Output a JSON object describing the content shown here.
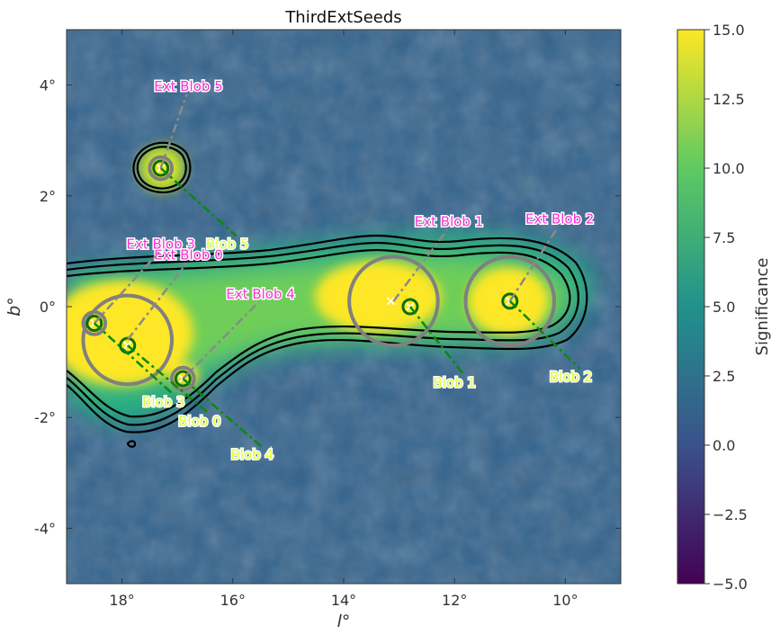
{
  "chart_data": {
    "type": "heatmap",
    "title": "ThirdExtSeeds",
    "xlabel": "l°",
    "ylabel": "b°",
    "xlim": [
      19,
      9
    ],
    "ylim": [
      -5,
      5
    ],
    "xticks": [
      "18°",
      "16°",
      "14°",
      "12°",
      "10°"
    ],
    "xtick_values": [
      18,
      16,
      14,
      12,
      10
    ],
    "yticks": [
      "4°",
      "2°",
      "0°",
      "-2°",
      "-4°"
    ],
    "ytick_values": [
      4,
      2,
      0,
      -2,
      -4
    ],
    "colorbar": {
      "label": "Significance",
      "range": [
        -5,
        15
      ],
      "ticks": [
        "15.0",
        "12.5",
        "10.0",
        "7.5",
        "5.0",
        "2.5",
        "0.0",
        "−2.5",
        "−5.0"
      ],
      "tick_values": [
        15,
        12.5,
        10,
        7.5,
        5,
        2.5,
        0,
        -2.5,
        -5
      ],
      "colormap": [
        "#440154",
        "#3b528b",
        "#21918c",
        "#5ec962",
        "#fde725"
      ]
    },
    "ext_seeds": [
      {
        "name": "Ext Blob 0",
        "l": 17.9,
        "b": -0.6,
        "r": 0.8,
        "label_l": 16.8,
        "label_b": 0.85
      },
      {
        "name": "Ext Blob 1",
        "l": 13.1,
        "b": 0.1,
        "r": 0.8,
        "label_l": 12.1,
        "label_b": 1.45
      },
      {
        "name": "Ext Blob 2",
        "l": 11.0,
        "b": 0.1,
        "r": 0.8,
        "label_l": 10.1,
        "label_b": 1.5
      },
      {
        "name": "Ext Blob 3",
        "l": 18.5,
        "b": -0.3,
        "r": 0.2,
        "label_l": 17.3,
        "label_b": 1.05
      },
      {
        "name": "Ext Blob 4",
        "l": 16.9,
        "b": -1.3,
        "r": 0.2,
        "label_l": 15.5,
        "label_b": 0.15
      },
      {
        "name": "Ext Blob 5",
        "l": 17.3,
        "b": 2.5,
        "r": 0.2,
        "label_l": 16.8,
        "label_b": 3.9
      }
    ],
    "blob_seeds": [
      {
        "name": "Blob 0",
        "l": 17.9,
        "b": -0.7,
        "label_l": 16.6,
        "label_b": -2.15
      },
      {
        "name": "Blob 1",
        "l": 12.8,
        "b": 0.0,
        "label_l": 12.0,
        "label_b": -1.45
      },
      {
        "name": "Blob 2",
        "l": 11.0,
        "b": 0.1,
        "label_l": 9.9,
        "label_b": -1.35
      },
      {
        "name": "Blob 3",
        "l": 18.5,
        "b": -0.3,
        "label_l": 17.25,
        "label_b": -1.8
      },
      {
        "name": "Blob 4",
        "l": 16.9,
        "b": -1.3,
        "label_l": 15.65,
        "label_b": -2.75
      },
      {
        "name": "Blob 5",
        "l": 17.3,
        "b": 2.5,
        "label_l": 16.1,
        "label_b": 1.05
      }
    ],
    "extra_marker": {
      "l": 13.15,
      "b": 0.1
    }
  }
}
